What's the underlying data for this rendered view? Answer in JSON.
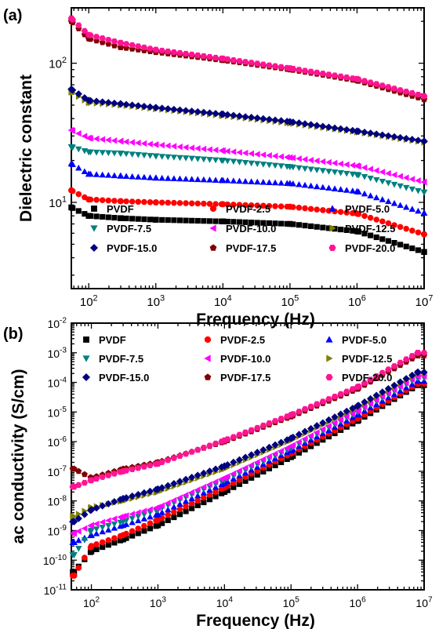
{
  "chart_data": [
    {
      "type": "scatter",
      "panel_label": "(a)",
      "xlabel": "Frequency (Hz)",
      "ylabel": "Dielectric constant",
      "x_scale": "log",
      "y_scale": "log",
      "xlim": [
        55,
        10000000
      ],
      "ylim": [
        2.4,
        250
      ],
      "x_ticks": [
        {
          "base": "10",
          "exp": "2",
          "value": 100
        },
        {
          "base": "10",
          "exp": "3",
          "value": 1000
        },
        {
          "base": "10",
          "exp": "4",
          "value": 10000
        },
        {
          "base": "10",
          "exp": "5",
          "value": 100000
        },
        {
          "base": "10",
          "exp": "6",
          "value": 1000000
        },
        {
          "base": "10",
          "exp": "7",
          "value": 10000000
        }
      ],
      "y_ticks": [
        {
          "base": "10",
          "exp": "1",
          "value": 10
        },
        {
          "base": "10",
          "exp": "2",
          "value": 100
        }
      ],
      "legend_position": "bottom",
      "series": [
        {
          "name": "PVDF",
          "marker": "square",
          "color": "#000000",
          "x": [
            55,
            100,
            300,
            1000,
            10000,
            100000,
            1000000,
            10000000
          ],
          "values": [
            9.2,
            8.0,
            7.7,
            7.5,
            7.3,
            7.0,
            6.2,
            4.4
          ]
        },
        {
          "name": "PVDF-2.5",
          "marker": "circle",
          "color": "#ff0000",
          "x": [
            55,
            100,
            300,
            1000,
            10000,
            100000,
            1000000,
            10000000
          ],
          "values": [
            12.2,
            10.5,
            10.2,
            10.0,
            9.7,
            9.3,
            8.3,
            5.9
          ]
        },
        {
          "name": "PVDF-5.0",
          "marker": "triangle-up",
          "color": "#0000ff",
          "x": [
            55,
            100,
            300,
            1000,
            10000,
            100000,
            1000000,
            10000000
          ],
          "values": [
            19.0,
            16.0,
            15.5,
            15.0,
            14.4,
            13.7,
            12.0,
            8.4
          ]
        },
        {
          "name": "PVDF-7.5",
          "marker": "triangle-down",
          "color": "#008080",
          "x": [
            55,
            100,
            300,
            1000,
            10000,
            100000,
            1000000,
            10000000
          ],
          "values": [
            25.0,
            23.0,
            22.5,
            21.5,
            20.0,
            18.0,
            15.8,
            11.8
          ]
        },
        {
          "name": "PVDF-10.0",
          "marker": "triangle-left",
          "color": "#ff00ff",
          "x": [
            55,
            100,
            300,
            1000,
            10000,
            100000,
            1000000,
            10000000
          ],
          "values": [
            33.0,
            29.0,
            27.5,
            26.0,
            23.5,
            21.0,
            18.3,
            14.0
          ]
        },
        {
          "name": "PVDF-12.5",
          "marker": "triangle-right",
          "color": "#808000",
          "x": [
            55,
            100,
            300,
            1000,
            10000,
            100000,
            1000000,
            10000000
          ],
          "values": [
            62.0,
            52.0,
            50.0,
            47.0,
            42.0,
            37.0,
            32.0,
            27.0
          ]
        },
        {
          "name": "PVDF-15.0",
          "marker": "diamond",
          "color": "#000080",
          "x": [
            55,
            100,
            300,
            1000,
            10000,
            100000,
            1000000,
            10000000
          ],
          "values": [
            65.0,
            54.0,
            51.0,
            48.0,
            43.0,
            38.0,
            32.5,
            27.5
          ]
        },
        {
          "name": "PVDF-17.5",
          "marker": "pentagon",
          "color": "#800000",
          "x": [
            55,
            100,
            300,
            1000,
            10000,
            100000,
            1000000,
            10000000
          ],
          "values": [
            200.0,
            150.0,
            130.0,
            120.0,
            105.0,
            90.0,
            75.0,
            55.0
          ]
        },
        {
          "name": "PVDF-20.0",
          "marker": "hexagon",
          "color": "#ff1493",
          "x": [
            55,
            100,
            300,
            1000,
            10000,
            100000,
            1000000,
            10000000
          ],
          "values": [
            210.0,
            160.0,
            140.0,
            125.0,
            108.0,
            92.0,
            77.0,
            58.0
          ]
        }
      ]
    },
    {
      "type": "scatter",
      "panel_label": "(b)",
      "xlabel": "Frequency (Hz)",
      "ylabel": "ac conductivity (S/cm)",
      "x_scale": "log",
      "y_scale": "log",
      "xlim": [
        50,
        10000000
      ],
      "ylim": [
        1e-11,
        0.01
      ],
      "x_ticks": [
        {
          "base": "10",
          "exp": "2",
          "value": 100
        },
        {
          "base": "10",
          "exp": "3",
          "value": 1000
        },
        {
          "base": "10",
          "exp": "4",
          "value": 10000
        },
        {
          "base": "10",
          "exp": "5",
          "value": 100000
        },
        {
          "base": "10",
          "exp": "6",
          "value": 1000000
        },
        {
          "base": "10",
          "exp": "7",
          "value": 10000000
        }
      ],
      "y_ticks": [
        {
          "base": "10",
          "exp": "-11",
          "value": 1e-11
        },
        {
          "base": "10",
          "exp": "-10",
          "value": 1e-10
        },
        {
          "base": "10",
          "exp": "-9",
          "value": 1e-09
        },
        {
          "base": "10",
          "exp": "-8",
          "value": 1e-08
        },
        {
          "base": "10",
          "exp": "-7",
          "value": 1e-07
        },
        {
          "base": "10",
          "exp": "-6",
          "value": 1e-06
        },
        {
          "base": "10",
          "exp": "-5",
          "value": 1e-05
        },
        {
          "base": "10",
          "exp": "-4",
          "value": 0.0001
        },
        {
          "base": "10",
          "exp": "-3",
          "value": 0.001
        },
        {
          "base": "10",
          "exp": "-2",
          "value": 0.01
        }
      ],
      "legend_position": "top",
      "series": [
        {
          "name": "PVDF",
          "marker": "square",
          "color": "#000000",
          "x": [
            55,
            100,
            300,
            1000,
            10000,
            100000,
            1000000,
            8000000
          ],
          "values": [
            4e-11,
            2e-10,
            5e-10,
            1.5e-09,
            2e-08,
            3e-07,
            5e-06,
            8e-05
          ]
        },
        {
          "name": "PVDF-2.5",
          "marker": "circle",
          "color": "#ff0000",
          "x": [
            55,
            100,
            300,
            1000,
            10000,
            100000,
            1000000,
            8000000
          ],
          "values": [
            3e-11,
            3e-10,
            7e-10,
            2.3e-09,
            2.8e-08,
            4e-07,
            6e-06,
            9e-05
          ]
        },
        {
          "name": "PVDF-5.0",
          "marker": "triangle-up",
          "color": "#0000ff",
          "x": [
            55,
            100,
            300,
            1000,
            10000,
            100000,
            1000000,
            8000000
          ],
          "values": [
            4e-10,
            7e-10,
            1.5e-09,
            3.5e-09,
            4e-08,
            5e-07,
            8e-06,
            0.00011
          ]
        },
        {
          "name": "PVDF-7.5",
          "marker": "triangle-down",
          "color": "#008080",
          "x": [
            55,
            100,
            300,
            1000,
            10000,
            100000,
            1000000,
            8000000
          ],
          "values": [
            1.5e-10,
            1e-09,
            2e-09,
            5e-09,
            5e-08,
            6e-07,
            1e-05,
            0.00014
          ]
        },
        {
          "name": "PVDF-10.0",
          "marker": "triangle-left",
          "color": "#ff00ff",
          "x": [
            55,
            100,
            300,
            1000,
            10000,
            100000,
            1000000,
            8000000
          ],
          "values": [
            8e-10,
            1.5e-09,
            3e-09,
            6e-09,
            6e-08,
            7e-07,
            1.1e-05,
            0.00016
          ]
        },
        {
          "name": "PVDF-12.5",
          "marker": "triangle-right",
          "color": "#808000",
          "x": [
            55,
            100,
            300,
            1000,
            10000,
            100000,
            1000000,
            8000000
          ],
          "values": [
            3e-09,
            6e-09,
            1e-08,
            2e-08,
            1.2e-07,
            1.1e-06,
            1.4e-05,
            0.0002
          ]
        },
        {
          "name": "PVDF-15.0",
          "marker": "diamond",
          "color": "#000080",
          "x": [
            55,
            100,
            300,
            1000,
            10000,
            100000,
            1000000,
            8000000
          ],
          "values": [
            2e-09,
            5e-09,
            1.2e-08,
            2.5e-08,
            1.5e-07,
            1.3e-06,
            1.6e-05,
            0.00022
          ]
        },
        {
          "name": "PVDF-17.5",
          "marker": "pentagon",
          "color": "#800000",
          "x": [
            55,
            100,
            300,
            1000,
            10000,
            100000,
            1000000,
            8000000
          ],
          "values": [
            1.2e-07,
            6e-08,
            1.2e-07,
            2e-07,
            1e-06,
            7e-06,
            6e-05,
            0.0008
          ]
        },
        {
          "name": "PVDF-20.0",
          "marker": "hexagon",
          "color": "#ff1493",
          "x": [
            55,
            100,
            300,
            1000,
            10000,
            100000,
            1000000,
            8000000
          ],
          "values": [
            3e-08,
            5e-08,
            1e-07,
            1.8e-07,
            1.1e-06,
            8e-06,
            7e-05,
            0.001
          ]
        }
      ]
    }
  ]
}
